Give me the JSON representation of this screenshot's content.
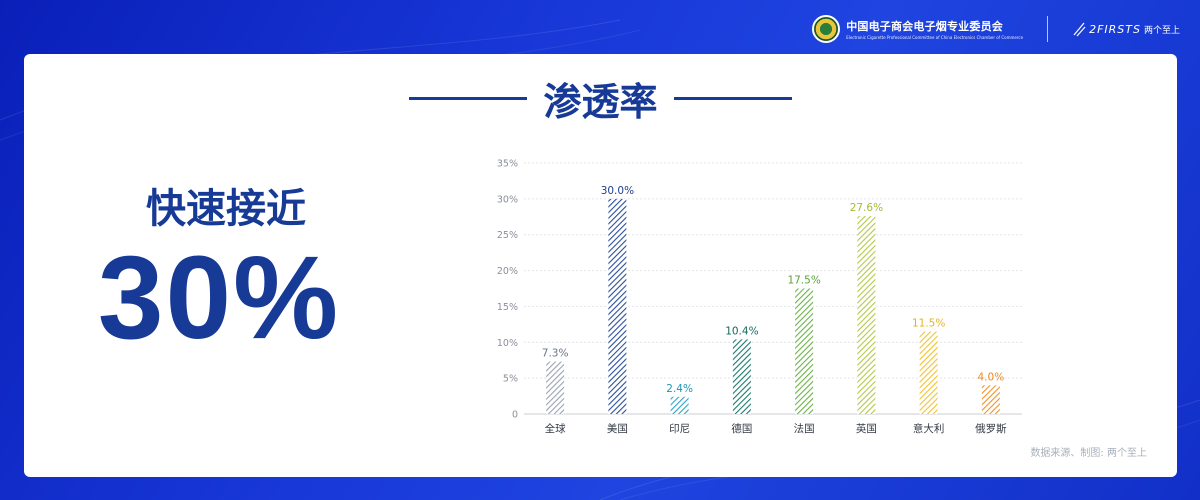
{
  "header": {
    "org_name": "中国电子商会电子烟专业委员会",
    "org_sub": "Electronic Cigarette Professional Committee of China Electronics Chamber of Commerce",
    "brand_en": "2FIRSTS",
    "brand_cn": "两个至上"
  },
  "title": "渗透率",
  "headline": "快速接近",
  "big_value": "30%",
  "source": "数据来源、制图: 两个至上",
  "chart_data": {
    "type": "bar",
    "title": "",
    "xlabel": "",
    "ylabel": "",
    "categories": [
      "全球",
      "美国",
      "印尼",
      "德国",
      "法国",
      "英国",
      "意大利",
      "俄罗斯"
    ],
    "values": [
      7.3,
      30.0,
      2.4,
      10.4,
      17.5,
      27.6,
      11.5,
      4.0
    ],
    "labels": [
      "7.3%",
      "30.0%",
      "2.4%",
      "10.4%",
      "17.5%",
      "27.6%",
      "11.5%",
      "4.0%"
    ],
    "colors": [
      "#9aa3b5",
      "#2b4e9a",
      "#2aa5c4",
      "#1a7a6e",
      "#6cb24a",
      "#b5c84a",
      "#f1c232",
      "#f0922b"
    ],
    "label_colors": [
      "#6b7488",
      "#1f3f8a",
      "#2094b2",
      "#14685d",
      "#5aa23a",
      "#a8b83a",
      "#e8b41c",
      "#ea8a23"
    ],
    "ylim": [
      0,
      35
    ],
    "yticks": [
      "0",
      "5%",
      "10%",
      "15%",
      "20%",
      "25%",
      "30%",
      "35%"
    ],
    "grid": true,
    "pattern": "diagonal-hatch"
  }
}
